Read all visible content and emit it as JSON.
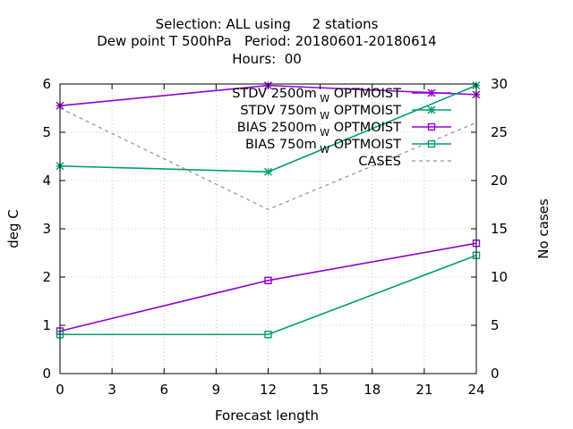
{
  "chart_data": {
    "type": "line",
    "title_lines": [
      "Selection: ALL using     2 stations",
      "Dew point T 500hPa   Period: 20180601-20180614",
      "Hours:  00"
    ],
    "xlabel": "Forecast length",
    "ylabel": "deg C",
    "y2label": "No cases",
    "xlim": [
      0,
      24
    ],
    "ylim": [
      0,
      6
    ],
    "y2lim": [
      0,
      30
    ],
    "xticks": [
      0,
      3,
      6,
      9,
      12,
      15,
      18,
      21,
      24
    ],
    "yticks": [
      0,
      1,
      2,
      3,
      4,
      5,
      6
    ],
    "y2ticks": [
      0,
      5,
      10,
      15,
      20,
      25,
      30
    ],
    "grid": true,
    "legend_position": "top-right",
    "x": [
      0,
      12,
      24
    ],
    "series": [
      {
        "name": "STDV 2500m",
        "sub": "W",
        "suffix": "OPTMOIST",
        "axis": "left",
        "color": "#9400d3",
        "marker": "star",
        "dash": false,
        "values": [
          5.55,
          5.97,
          5.78
        ]
      },
      {
        "name": "STDV 750m",
        "sub": "W",
        "suffix": "OPTMOIST",
        "axis": "left",
        "color": "#009e73",
        "marker": "star",
        "dash": false,
        "values": [
          4.3,
          4.18,
          5.97
        ]
      },
      {
        "name": "BIAS 2500m",
        "sub": "W",
        "suffix": "OPTMOIST",
        "axis": "left",
        "color": "#9400d3",
        "marker": "square",
        "dash": false,
        "values": [
          0.88,
          1.93,
          2.7
        ]
      },
      {
        "name": "BIAS 750m",
        "sub": "W",
        "suffix": "OPTMOIST",
        "axis": "left",
        "color": "#009e73",
        "marker": "square",
        "dash": false,
        "values": [
          0.81,
          0.81,
          2.45
        ]
      },
      {
        "name": "CASES",
        "sub": "",
        "suffix": "",
        "axis": "right",
        "color": "#999999",
        "marker": "none",
        "dash": true,
        "values": [
          27.5,
          17,
          26
        ]
      }
    ]
  }
}
